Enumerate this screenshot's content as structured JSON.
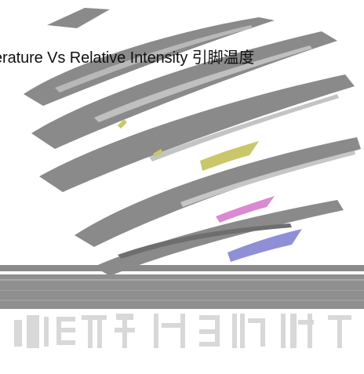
{
  "caption": "erature Vs Relative Intensity  引脚温度",
  "colors": {
    "background": "#ffffff",
    "stripe": "#8a8a8a",
    "stripe_shadow": "#6e6e6e",
    "band": "#8f8f8f",
    "glyph": "#d8d8d8",
    "accent_yellow": "#c9c76a",
    "accent_pink": "#d98ad0",
    "accent_blue": "#8f8fd8",
    "text": "#111111"
  },
  "artwork": {
    "description_icon": "corrupted-image-icon"
  }
}
